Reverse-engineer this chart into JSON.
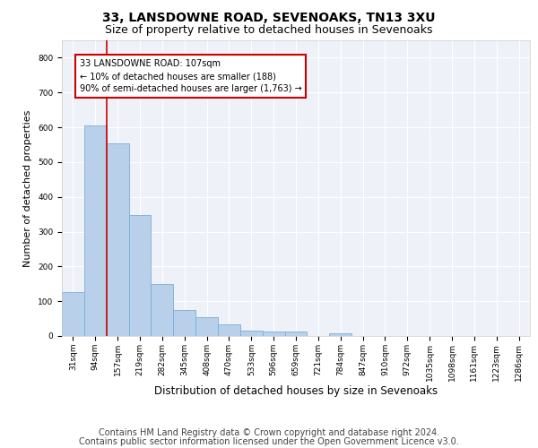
{
  "title": "33, LANSDOWNE ROAD, SEVENOAKS, TN13 3XU",
  "subtitle": "Size of property relative to detached houses in Sevenoaks",
  "xlabel": "Distribution of detached houses by size in Sevenoaks",
  "ylabel": "Number of detached properties",
  "categories": [
    "31sqm",
    "94sqm",
    "157sqm",
    "219sqm",
    "282sqm",
    "345sqm",
    "408sqm",
    "470sqm",
    "533sqm",
    "596sqm",
    "659sqm",
    "721sqm",
    "784sqm",
    "847sqm",
    "910sqm",
    "972sqm",
    "1035sqm",
    "1098sqm",
    "1161sqm",
    "1223sqm",
    "1286sqm"
  ],
  "values": [
    125,
    605,
    555,
    348,
    150,
    75,
    55,
    33,
    15,
    13,
    12,
    0,
    7,
    0,
    0,
    0,
    0,
    0,
    0,
    0,
    0
  ],
  "bar_color": "#b8d0ea",
  "bar_edge_color": "#7aaed4",
  "vline_color": "#cc0000",
  "annotation_text": "33 LANSDOWNE ROAD: 107sqm\n← 10% of detached houses are smaller (188)\n90% of semi-detached houses are larger (1,763) →",
  "annotation_box_color": "#cc0000",
  "ylim": [
    0,
    850
  ],
  "yticks": [
    0,
    100,
    200,
    300,
    400,
    500,
    600,
    700,
    800
  ],
  "footer_line1": "Contains HM Land Registry data © Crown copyright and database right 2024.",
  "footer_line2": "Contains public sector information licensed under the Open Government Licence v3.0.",
  "axes_background": "#eef2f8",
  "title_fontsize": 10,
  "subtitle_fontsize": 9,
  "footer_fontsize": 7,
  "tick_fontsize": 6.5,
  "ylabel_fontsize": 8,
  "xlabel_fontsize": 8.5
}
